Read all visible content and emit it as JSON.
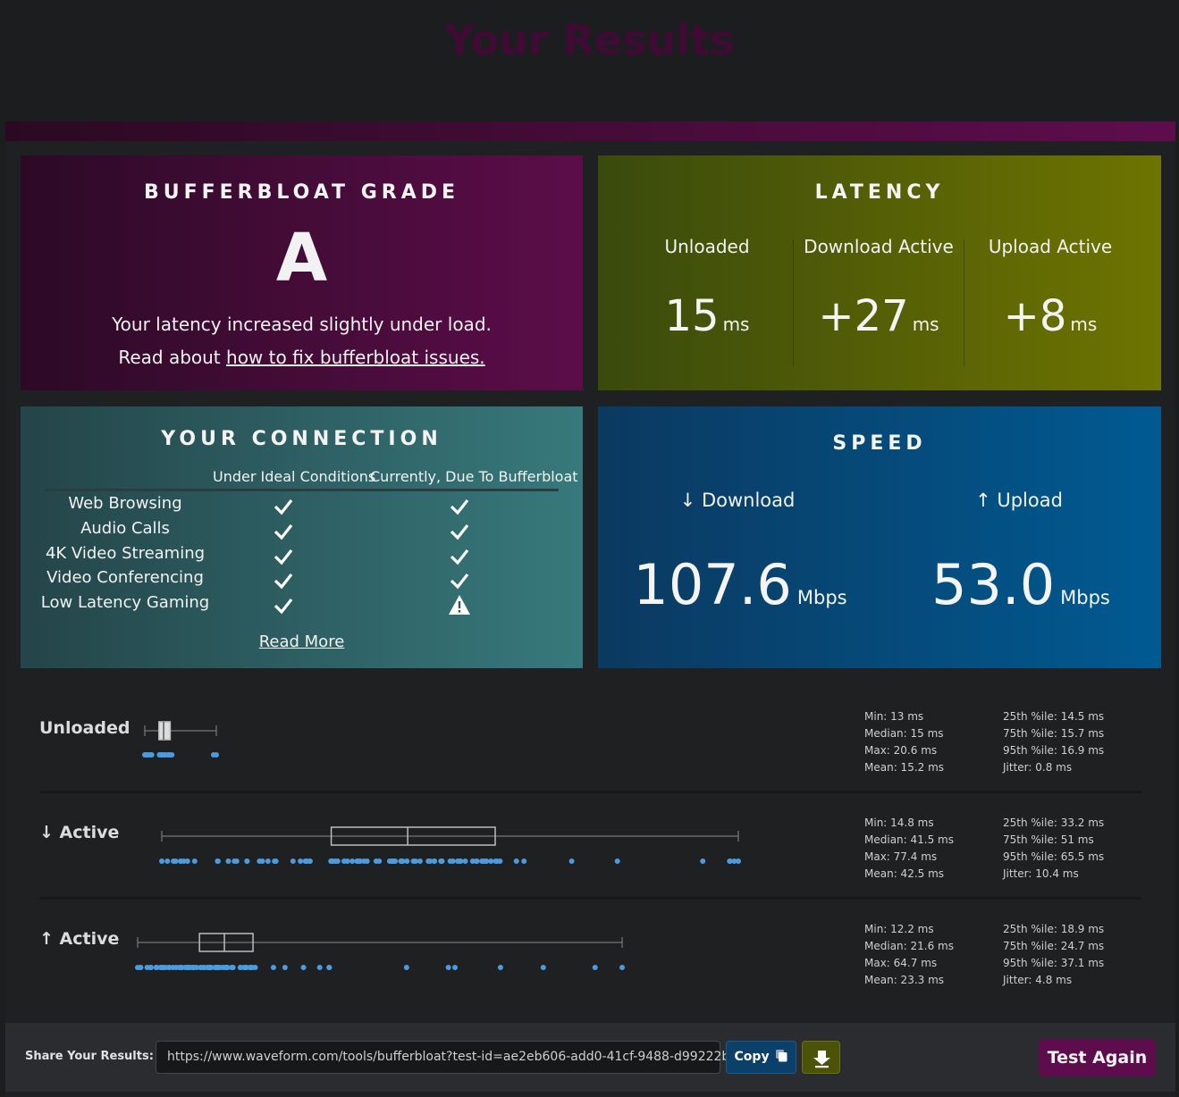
{
  "page_title": "Your Results",
  "grade": {
    "title": "BUFFERBLOAT GRADE",
    "letter": "A",
    "description": "Your latency increased slightly under load.",
    "read_prefix": "Read about",
    "read_link": "how to fix bufferbloat issues."
  },
  "latency": {
    "title": "LATENCY",
    "columns": [
      {
        "label": "Unloaded",
        "value": "15",
        "unit": "ms"
      },
      {
        "label": "Download Active",
        "value": "+27",
        "unit": "ms"
      },
      {
        "label": "Upload Active",
        "value": "+8",
        "unit": "ms"
      }
    ]
  },
  "connection": {
    "title": "YOUR CONNECTION",
    "header_ideal": "Under Ideal Conditions",
    "header_current": "Currently, Due To Bufferbloat",
    "rows": [
      {
        "label": "Web Browsing",
        "ideal": "check",
        "current": "check"
      },
      {
        "label": "Audio Calls",
        "ideal": "check",
        "current": "check"
      },
      {
        "label": "4K Video Streaming",
        "ideal": "check",
        "current": "check"
      },
      {
        "label": "Video Conferencing",
        "ideal": "check",
        "current": "check"
      },
      {
        "label": "Low Latency Gaming",
        "ideal": "check",
        "current": "warning"
      }
    ],
    "read_more": "Read More"
  },
  "speed": {
    "title": "SPEED",
    "download_label": "↓ Download",
    "upload_label": "↑ Upload",
    "download_value": "107.6",
    "upload_value": "53.0",
    "unit": "Mbps"
  },
  "chart_data": {
    "type": "boxplot",
    "unit": "ms",
    "rows": [
      {
        "label": "Unloaded",
        "min": 13,
        "q1": 14.5,
        "median": 15,
        "q3": 15.7,
        "max": 20.6,
        "stats_left": [
          "Min: 13 ms",
          "Median: 15 ms",
          "Max: 20.6 ms",
          "Mean: 15.2 ms"
        ],
        "stats_right": [
          "25th %ile: 14.5 ms",
          "75th %ile: 15.7 ms",
          "95th %ile: 16.9 ms",
          "Jitter: 0.8 ms"
        ]
      },
      {
        "label": "↓ Active",
        "min": 14.8,
        "q1": 33.2,
        "median": 41.5,
        "q3": 51,
        "max": 77.4,
        "stats_left": [
          "Min: 14.8 ms",
          "Median: 41.5 ms",
          "Max: 77.4 ms",
          "Mean: 42.5 ms"
        ],
        "stats_right": [
          "25th %ile: 33.2 ms",
          "75th %ile: 51 ms",
          "95th %ile: 65.5 ms",
          "Jitter: 10.4 ms"
        ]
      },
      {
        "label": "↑ Active",
        "min": 12.2,
        "q1": 18.9,
        "median": 21.6,
        "q3": 24.7,
        "max": 64.7,
        "stats_left": [
          "Min: 12.2 ms",
          "Median: 21.6 ms",
          "Max: 64.7 ms",
          "Mean: 23.3 ms"
        ],
        "stats_right": [
          "25th %ile: 18.9 ms",
          "75th %ile: 24.7 ms",
          "95th %ile: 37.1 ms",
          "Jitter: 4.8 ms"
        ]
      }
    ]
  },
  "share": {
    "label": "Share Your Results:",
    "url": "https://www.waveform.com/tools/bufferbloat?test-id=ae2eb606-add0-41cf-9488-d99222b",
    "copy_label": "Copy",
    "test_again": "Test Again"
  },
  "colors": {
    "grade_accent": "#5c0d49",
    "latency_accent": "#6e7400",
    "connection_accent": "#37797c",
    "speed_accent": "#005a92",
    "dot_color": "#4a9be0"
  }
}
